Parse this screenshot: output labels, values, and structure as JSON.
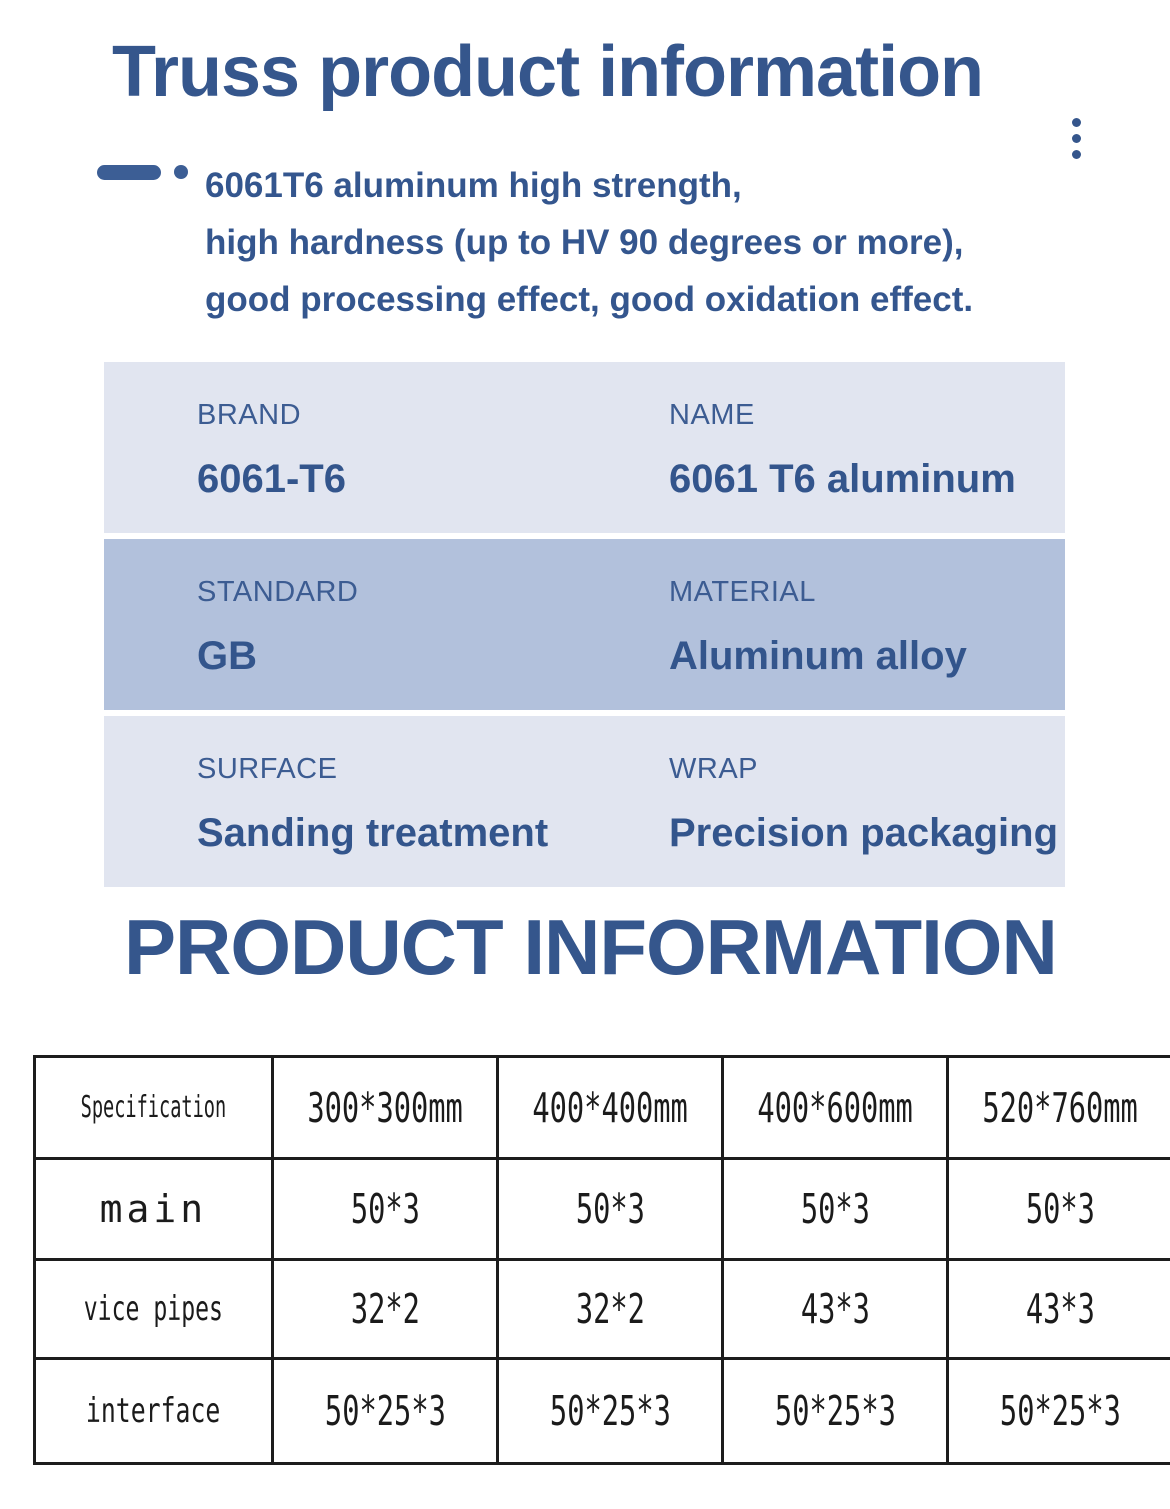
{
  "header": {
    "title": "Truss product information",
    "description_lines": [
      "6061T6 aluminum high strength,",
      "high hardness (up to HV 90 degrees or more),",
      "good processing effect, good oxidation effect."
    ]
  },
  "colors": {
    "accent_blue": "#35568c",
    "label_blue": "#3c5c92",
    "value_blue": "#33558c",
    "row_light_bg": "#e1e5f0",
    "row_dark_bg": "#b2c1dc",
    "table_border": "#1d1d1d"
  },
  "icons": {
    "dash_dot_bullet": "dash-dot-bullet",
    "vertical_dots": "vertical-dots"
  },
  "spec_section": {
    "rows": [
      {
        "cells": [
          {
            "label": "BRAND",
            "value": "6061-T6"
          },
          {
            "label": "NAME",
            "value": "6061 T6 aluminum"
          }
        ]
      },
      {
        "cells": [
          {
            "label": "STANDARD",
            "value": "GB"
          },
          {
            "label": "MATERIAL",
            "value": "Aluminum alloy"
          }
        ]
      },
      {
        "cells": [
          {
            "label": "SURFACE",
            "value": "Sanding treatment"
          },
          {
            "label": "WRAP",
            "value": "Precision packaging"
          }
        ]
      }
    ]
  },
  "section2": {
    "title": "PRODUCT INFORMATION"
  },
  "size_table": {
    "header": [
      "Specification",
      "300*300mm",
      "400*400mm",
      "400*600mm",
      "520*760mm"
    ],
    "rows": [
      {
        "label": "main",
        "values": [
          "50*3",
          "50*3",
          "50*3",
          "50*3"
        ]
      },
      {
        "label": "vice pipes",
        "values": [
          "32*2",
          "32*2",
          "43*3",
          "43*3"
        ]
      },
      {
        "label": "interface",
        "values": [
          "50*25*3",
          "50*25*3",
          "50*25*3",
          "50*25*3"
        ]
      }
    ]
  }
}
